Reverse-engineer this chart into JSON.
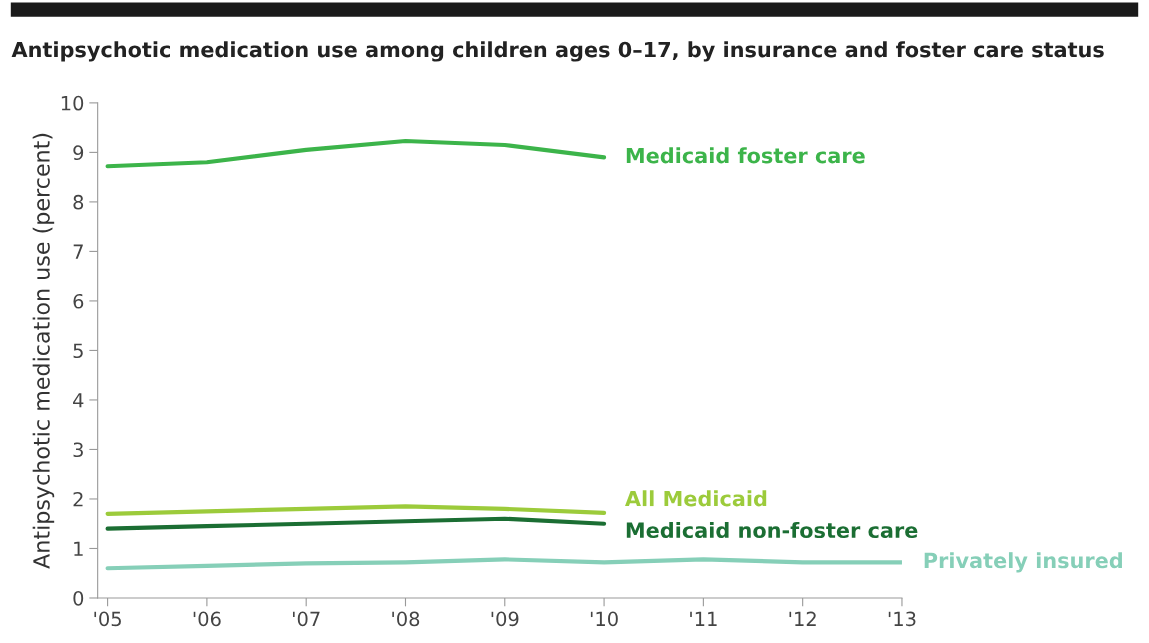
{
  "chart_data": {
    "type": "line",
    "title": "Antipsychotic medication use among children ages 0–17, by insurance and foster care status",
    "ylabel": "Antipsychotic medication use (percent)",
    "categories": [
      "'05",
      "'06",
      "'07",
      "'08",
      "'09",
      "'10",
      "'11",
      "'12",
      "'13"
    ],
    "series": [
      {
        "name": "Medicaid foster care",
        "color": "#3cb44a",
        "values": [
          8.72,
          8.8,
          9.05,
          9.23,
          9.15,
          8.9,
          null,
          null,
          null
        ]
      },
      {
        "name": "All Medicaid",
        "color": "#9ccb3b",
        "values": [
          1.7,
          1.75,
          1.8,
          1.85,
          1.8,
          1.72,
          null,
          null,
          null
        ]
      },
      {
        "name": "Medicaid non-foster care",
        "color": "#1b6e33",
        "values": [
          1.4,
          1.45,
          1.5,
          1.55,
          1.6,
          1.5,
          null,
          null,
          null
        ]
      },
      {
        "name": "Privately insured",
        "color": "#86cfb8",
        "values": [
          0.6,
          0.65,
          0.7,
          0.72,
          0.78,
          0.72,
          0.78,
          0.72,
          0.72
        ]
      }
    ],
    "ylim": [
      0,
      10
    ],
    "yticks": [
      0,
      1,
      2,
      3,
      4,
      5,
      6,
      7,
      8,
      9,
      10
    ],
    "grid": false,
    "legend": false,
    "marker": "none",
    "line_style": "solid"
  }
}
